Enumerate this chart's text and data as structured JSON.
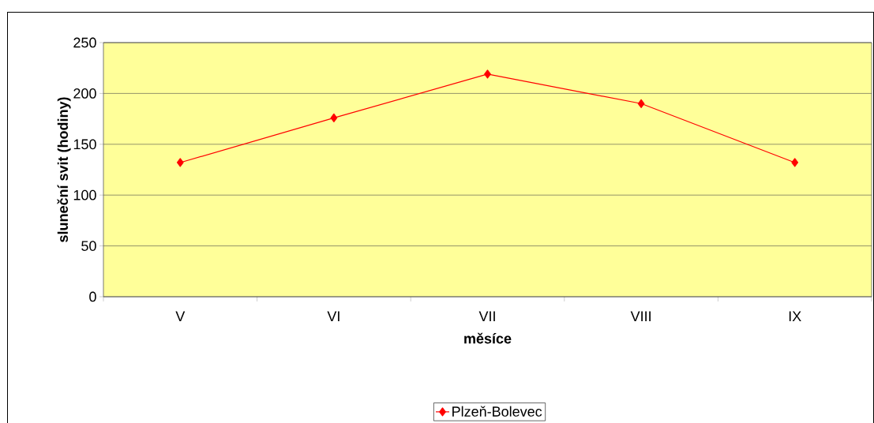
{
  "chart_data": {
    "type": "line",
    "xlabel": "měsíce",
    "ylabel": "sluneční svit (hodiny)",
    "categories": [
      "V",
      "VI",
      "VII",
      "VIII",
      "IX"
    ],
    "series": [
      {
        "name": "Plzeň-Bolevec",
        "color": "#ff0000",
        "values": [
          132,
          176,
          219,
          190,
          132
        ]
      }
    ],
    "ylim": [
      0,
      250
    ],
    "yticks": [
      0,
      50,
      100,
      150,
      200,
      250
    ],
    "grid": "y",
    "legend": "bottom",
    "marker": "diamond",
    "line_style": "solid"
  }
}
